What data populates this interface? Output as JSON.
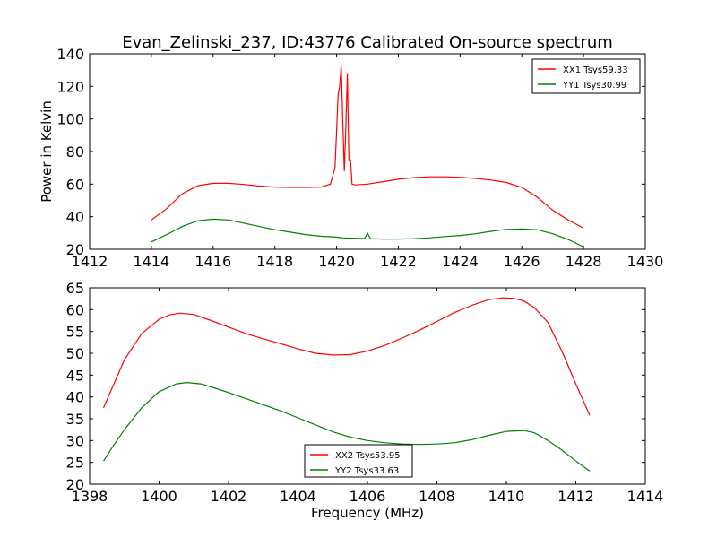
{
  "title": "Evan_Zelinski_237, ID:43776 Calibrated On-source spectrum",
  "colors": {
    "xx": "#ff0000",
    "yy": "#008000"
  },
  "chart_data": [
    {
      "type": "line",
      "ylabel": "Power in Kelvin",
      "xlabel": "",
      "xlim": [
        1412,
        1430
      ],
      "ylim": [
        20,
        140
      ],
      "xticks": [
        1412,
        1414,
        1416,
        1418,
        1420,
        1422,
        1424,
        1426,
        1428,
        1430
      ],
      "yticks": [
        20,
        40,
        60,
        80,
        100,
        120,
        140
      ],
      "legend_loc": "upper right",
      "series": [
        {
          "name": "XX1 Tsys59.33",
          "color": "#ff0000",
          "x": [
            1414.0,
            1414.5,
            1415.0,
            1415.5,
            1416.0,
            1416.5,
            1417.0,
            1417.5,
            1418.0,
            1418.5,
            1419.0,
            1419.5,
            1419.8,
            1419.95,
            1420.05,
            1420.1,
            1420.15,
            1420.2,
            1420.25,
            1420.3,
            1420.35,
            1420.4,
            1420.45,
            1420.5,
            1420.6,
            1421.0,
            1421.5,
            1422.0,
            1422.5,
            1423.0,
            1423.5,
            1424.0,
            1424.5,
            1425.0,
            1425.5,
            1426.0,
            1426.5,
            1427.0,
            1427.5,
            1428.0
          ],
          "y": [
            38,
            45,
            54,
            59,
            60.5,
            60.5,
            59.8,
            58.8,
            58.2,
            58.0,
            58.0,
            58.2,
            60,
            70,
            115,
            120,
            133,
            100,
            68,
            95,
            128,
            75,
            75,
            60,
            59.5,
            60,
            61.5,
            63,
            64,
            64.5,
            64.5,
            64.2,
            63.5,
            62.5,
            61,
            58,
            52,
            44,
            38,
            33
          ]
        },
        {
          "name": "YY1 Tsys30.99",
          "color": "#008000",
          "x": [
            1414.0,
            1414.5,
            1415.0,
            1415.5,
            1416.0,
            1416.5,
            1417.0,
            1417.5,
            1418.0,
            1418.5,
            1419.0,
            1419.5,
            1420.0,
            1420.2,
            1420.5,
            1420.9,
            1420.95,
            1421.0,
            1421.05,
            1421.1,
            1421.5,
            1422.0,
            1422.5,
            1423.0,
            1423.5,
            1424.0,
            1424.5,
            1425.0,
            1425.5,
            1426.0,
            1426.5,
            1427.0,
            1427.5,
            1428.0
          ],
          "y": [
            24.5,
            29,
            34,
            37.5,
            38.5,
            38,
            36,
            34,
            32,
            30.5,
            29,
            28,
            27.5,
            27,
            26.8,
            26.6,
            28,
            30,
            28,
            26.5,
            26.3,
            26.3,
            26.5,
            27,
            27.8,
            28.5,
            29.5,
            31,
            32.2,
            32.5,
            32,
            29.5,
            26,
            21.5
          ]
        }
      ]
    },
    {
      "type": "line",
      "ylabel": "",
      "xlabel": "Frequency (MHz)",
      "xlim": [
        1398,
        1414
      ],
      "ylim": [
        20,
        65
      ],
      "xticks": [
        1398,
        1400,
        1402,
        1404,
        1406,
        1408,
        1410,
        1412,
        1414
      ],
      "yticks": [
        20,
        25,
        30,
        35,
        40,
        45,
        50,
        55,
        60,
        65
      ],
      "legend_loc": "lower center",
      "series": [
        {
          "name": "XX2 Tsys53.95",
          "color": "#ff0000",
          "x": [
            1398.4,
            1398.7,
            1399.0,
            1399.5,
            1400.0,
            1400.3,
            1400.6,
            1401.0,
            1401.5,
            1402.0,
            1402.5,
            1403.0,
            1403.5,
            1404.0,
            1404.5,
            1405.0,
            1405.5,
            1406.0,
            1406.5,
            1407.0,
            1407.5,
            1408.0,
            1408.5,
            1409.0,
            1409.5,
            1409.9,
            1410.2,
            1410.5,
            1410.8,
            1411.2,
            1411.6,
            1412.0,
            1412.4
          ],
          "y": [
            37.5,
            43,
            48.5,
            54.5,
            57.8,
            58.8,
            59.2,
            58.9,
            57.5,
            56.0,
            54.5,
            53.3,
            52.2,
            51.0,
            50.0,
            49.6,
            49.7,
            50.5,
            51.8,
            53.5,
            55.3,
            57.3,
            59.3,
            61.0,
            62.3,
            62.7,
            62.6,
            62.0,
            60.5,
            57.0,
            50.5,
            43.0,
            35.8
          ]
        },
        {
          "name": "YY2 Tsys33.63",
          "color": "#008000",
          "x": [
            1398.4,
            1398.7,
            1399.0,
            1399.5,
            1400.0,
            1400.5,
            1400.8,
            1401.2,
            1401.5,
            1402.0,
            1402.5,
            1403.0,
            1403.5,
            1404.0,
            1404.5,
            1405.0,
            1405.5,
            1406.0,
            1406.5,
            1407.0,
            1407.5,
            1408.0,
            1408.5,
            1409.0,
            1409.5,
            1410.0,
            1410.5,
            1410.8,
            1411.2,
            1411.6,
            1412.0,
            1412.4
          ],
          "y": [
            25.3,
            29,
            32.5,
            37.5,
            41.2,
            43.0,
            43.3,
            43.0,
            42.3,
            41.0,
            39.6,
            38.2,
            36.8,
            35.2,
            33.6,
            32.0,
            30.8,
            30.0,
            29.5,
            29.2,
            29.1,
            29.2,
            29.5,
            30.2,
            31.2,
            32.1,
            32.3,
            31.8,
            30.0,
            27.8,
            25.3,
            23.0
          ]
        }
      ]
    }
  ]
}
